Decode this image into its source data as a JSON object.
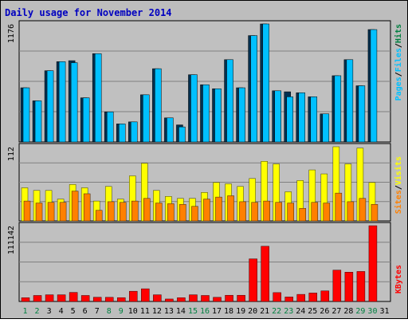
{
  "colors": {
    "background": "#bdbdbd",
    "plot_bg": "#c0c0c0",
    "grid": "#808080",
    "title": "#0000c0",
    "pages": "#00c0ff",
    "pages_shadow": "#003050",
    "files": "#00c0ff",
    "hits": "#008040",
    "visits": "#ffff00",
    "sites": "#ff8000",
    "kbytes": "#ff0000",
    "axis_text": "#000000",
    "weekend_day": "#008040"
  },
  "chart_data": [
    {
      "type": "bar",
      "title": "Daily usage for November 2014",
      "panel": "pages_files_hits",
      "y_max_label": "1176",
      "ylim": [
        0,
        1176
      ],
      "legend_labels": [
        "Pages",
        "Files",
        "Hits"
      ],
      "categories": [
        "1",
        "2",
        "3",
        "4",
        "5",
        "6",
        "7",
        "8",
        "9",
        "10",
        "11",
        "12",
        "13",
        "14",
        "15",
        "16",
        "17",
        "18",
        "19",
        "20",
        "21",
        "22",
        "23",
        "24",
        "25",
        "26",
        "27",
        "28",
        "29",
        "30",
        "31"
      ],
      "series": [
        {
          "name": "Pages",
          "values": [
            540,
            410,
            710,
            800,
            810,
            440,
            880,
            300,
            180,
            200,
            470,
            730,
            240,
            170,
            670,
            570,
            530,
            820,
            540,
            1060,
            1176,
            510,
            500,
            490,
            450,
            280,
            660,
            820,
            560,
            1120,
            0
          ]
        },
        {
          "name": "Files",
          "values": [
            540,
            410,
            710,
            800,
            790,
            440,
            880,
            300,
            180,
            200,
            470,
            730,
            240,
            150,
            670,
            570,
            530,
            820,
            540,
            1060,
            1176,
            510,
            450,
            490,
            450,
            280,
            660,
            820,
            560,
            1120,
            0
          ]
        }
      ]
    },
    {
      "type": "bar",
      "panel": "visits_sites",
      "y_max_label": "112",
      "ylim": [
        0,
        112
      ],
      "legend_labels": [
        "Sites",
        "Visits"
      ],
      "categories": [
        "1",
        "2",
        "3",
        "4",
        "5",
        "6",
        "7",
        "8",
        "9",
        "10",
        "11",
        "12",
        "13",
        "14",
        "15",
        "16",
        "17",
        "18",
        "19",
        "20",
        "21",
        "22",
        "23",
        "24",
        "25",
        "26",
        "27",
        "28",
        "29",
        "30",
        "31"
      ],
      "series": [
        {
          "name": "Visits",
          "values": [
            50,
            46,
            46,
            33,
            55,
            50,
            30,
            52,
            33,
            68,
            87,
            46,
            37,
            34,
            34,
            43,
            58,
            56,
            52,
            64,
            90,
            86,
            44,
            61,
            77,
            71,
            112,
            86,
            110,
            58,
            0
          ]
        },
        {
          "name": "Sites",
          "values": [
            30,
            27,
            28,
            28,
            45,
            41,
            16,
            29,
            28,
            30,
            34,
            27,
            26,
            25,
            22,
            33,
            36,
            38,
            29,
            28,
            30,
            28,
            27,
            19,
            28,
            27,
            42,
            29,
            34,
            25,
            0
          ]
        }
      ]
    },
    {
      "type": "bar",
      "panel": "kbytes",
      "y_max_label": "111142",
      "ylim": [
        0,
        111142
      ],
      "legend_labels": [
        "KBytes"
      ],
      "categories": [
        "1",
        "2",
        "3",
        "4",
        "5",
        "6",
        "7",
        "8",
        "9",
        "10",
        "11",
        "12",
        "13",
        "14",
        "15",
        "16",
        "17",
        "18",
        "19",
        "20",
        "21",
        "22",
        "23",
        "24",
        "25",
        "26",
        "27",
        "28",
        "29",
        "30",
        "31"
      ],
      "series": [
        {
          "name": "KBytes",
          "values": [
            5500,
            8800,
            9800,
            9800,
            13300,
            8800,
            6200,
            6100,
            5600,
            15000,
            18600,
            9800,
            3600,
            5500,
            9800,
            8800,
            6100,
            9100,
            9100,
            62500,
            81000,
            13000,
            6600,
            10400,
            12400,
            15500,
            46000,
            43000,
            44000,
            111142,
            0
          ]
        }
      ]
    }
  ],
  "x_labels": [
    "1",
    "2",
    "3",
    "4",
    "5",
    "6",
    "7",
    "8",
    "9",
    "10",
    "11",
    "12",
    "13",
    "14",
    "15",
    "16",
    "17",
    "18",
    "19",
    "20",
    "21",
    "22",
    "23",
    "24",
    "25",
    "26",
    "27",
    "28",
    "29",
    "30",
    "31"
  ],
  "weekend_days": [
    "1",
    "2",
    "8",
    "9",
    "15",
    "16",
    "22",
    "23",
    "29",
    "30"
  ]
}
